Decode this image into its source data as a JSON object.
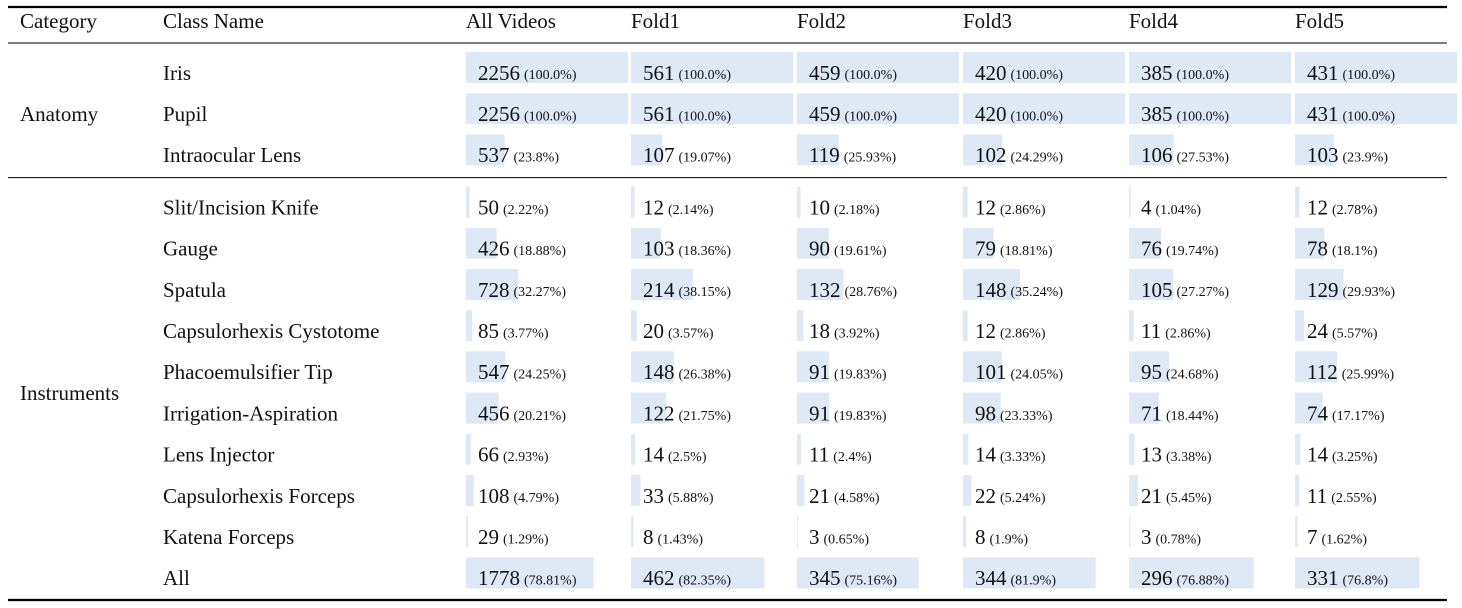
{
  "header": [
    "Category",
    "Class Name",
    "All Videos",
    "Fold1",
    "Fold2",
    "Fold3",
    "Fold4",
    "Fold5"
  ],
  "groups": [
    {
      "category": "Anatomy",
      "rows": [
        {
          "name": "Iris",
          "cells": [
            [
              2256,
              100.0,
              "(100.0%)"
            ],
            [
              561,
              100.0,
              "(100.0%)"
            ],
            [
              459,
              100.0,
              "(100.0%)"
            ],
            [
              420,
              100.0,
              "(100.0%)"
            ],
            [
              385,
              100.0,
              "(100.0%)"
            ],
            [
              431,
              100.0,
              "(100.0%)"
            ]
          ]
        },
        {
          "name": "Pupil",
          "cells": [
            [
              2256,
              100.0,
              "(100.0%)"
            ],
            [
              561,
              100.0,
              "(100.0%)"
            ],
            [
              459,
              100.0,
              "(100.0%)"
            ],
            [
              420,
              100.0,
              "(100.0%)"
            ],
            [
              385,
              100.0,
              "(100.0%)"
            ],
            [
              431,
              100.0,
              "(100.0%)"
            ]
          ]
        },
        {
          "name": "Intraocular Lens",
          "cells": [
            [
              537,
              23.8,
              "(23.8%)"
            ],
            [
              107,
              19.07,
              "(19.07%)"
            ],
            [
              119,
              25.93,
              "(25.93%)"
            ],
            [
              102,
              24.29,
              "(24.29%)"
            ],
            [
              106,
              27.53,
              "(27.53%)"
            ],
            [
              103,
              23.9,
              "(23.9%)"
            ]
          ]
        }
      ]
    },
    {
      "category": "Instruments",
      "rows": [
        {
          "name": "Slit/Incision Knife",
          "cells": [
            [
              50,
              2.22,
              "(2.22%)"
            ],
            [
              12,
              2.14,
              "(2.14%)"
            ],
            [
              10,
              2.18,
              "(2.18%)"
            ],
            [
              12,
              2.86,
              "(2.86%)"
            ],
            [
              4,
              1.04,
              "(1.04%)"
            ],
            [
              12,
              2.78,
              "(2.78%)"
            ]
          ]
        },
        {
          "name": "Gauge",
          "cells": [
            [
              426,
              18.88,
              "(18.88%)"
            ],
            [
              103,
              18.36,
              "(18.36%)"
            ],
            [
              90,
              19.61,
              "(19.61%)"
            ],
            [
              79,
              18.81,
              "(18.81%)"
            ],
            [
              76,
              19.74,
              "(19.74%)"
            ],
            [
              78,
              18.1,
              "(18.1%)"
            ]
          ]
        },
        {
          "name": "Spatula",
          "cells": [
            [
              728,
              32.27,
              "(32.27%)"
            ],
            [
              214,
              38.15,
              "(38.15%)"
            ],
            [
              132,
              28.76,
              "(28.76%)"
            ],
            [
              148,
              35.24,
              "(35.24%)"
            ],
            [
              105,
              27.27,
              "(27.27%)"
            ],
            [
              129,
              29.93,
              "(29.93%)"
            ]
          ]
        },
        {
          "name": "Capsulorhexis Cystotome",
          "cells": [
            [
              85,
              3.77,
              "(3.77%)"
            ],
            [
              20,
              3.57,
              "(3.57%)"
            ],
            [
              18,
              3.92,
              "(3.92%)"
            ],
            [
              12,
              2.86,
              "(2.86%)"
            ],
            [
              11,
              2.86,
              "(2.86%)"
            ],
            [
              24,
              5.57,
              "(5.57%)"
            ]
          ]
        },
        {
          "name": "Phacoemulsifier Tip",
          "cells": [
            [
              547,
              24.25,
              "(24.25%)"
            ],
            [
              148,
              26.38,
              "(26.38%)"
            ],
            [
              91,
              19.83,
              "(19.83%)"
            ],
            [
              101,
              24.05,
              "(24.05%)"
            ],
            [
              95,
              24.68,
              "(24.68%)"
            ],
            [
              112,
              25.99,
              "(25.99%)"
            ]
          ]
        },
        {
          "name": "Irrigation-Aspiration",
          "cells": [
            [
              456,
              20.21,
              "(20.21%)"
            ],
            [
              122,
              21.75,
              "(21.75%)"
            ],
            [
              91,
              19.83,
              "(19.83%)"
            ],
            [
              98,
              23.33,
              "(23.33%)"
            ],
            [
              71,
              18.44,
              "(18.44%)"
            ],
            [
              74,
              17.17,
              "(17.17%)"
            ]
          ]
        },
        {
          "name": "Lens Injector",
          "cells": [
            [
              66,
              2.93,
              "(2.93%)"
            ],
            [
              14,
              2.5,
              "(2.5%)"
            ],
            [
              11,
              2.4,
              "(2.4%)"
            ],
            [
              14,
              3.33,
              "(3.33%)"
            ],
            [
              13,
              3.38,
              "(3.38%)"
            ],
            [
              14,
              3.25,
              "(3.25%)"
            ]
          ]
        },
        {
          "name": "Capsulorhexis Forceps",
          "cells": [
            [
              108,
              4.79,
              "(4.79%)"
            ],
            [
              33,
              5.88,
              "(5.88%)"
            ],
            [
              21,
              4.58,
              "(4.58%)"
            ],
            [
              22,
              5.24,
              "(5.24%)"
            ],
            [
              21,
              5.45,
              "(5.45%)"
            ],
            [
              11,
              2.55,
              "(2.55%)"
            ]
          ]
        },
        {
          "name": "Katena Forceps",
          "cells": [
            [
              29,
              1.29,
              "(1.29%)"
            ],
            [
              8,
              1.43,
              "(1.43%)"
            ],
            [
              3,
              0.65,
              "(0.65%)"
            ],
            [
              8,
              1.9,
              "(1.9%)"
            ],
            [
              3,
              0.78,
              "(0.78%)"
            ],
            [
              7,
              1.62,
              "(1.62%)"
            ]
          ]
        },
        {
          "name": "All",
          "cells": [
            [
              1778,
              78.81,
              "(78.81%)"
            ],
            [
              462,
              82.35,
              "(82.35%)"
            ],
            [
              345,
              75.16,
              "(75.16%)"
            ],
            [
              344,
              81.9,
              "(81.9%)"
            ],
            [
              296,
              76.88,
              "(76.88%)"
            ],
            [
              331,
              76.8,
              "(76.8%)"
            ]
          ]
        }
      ]
    }
  ]
}
